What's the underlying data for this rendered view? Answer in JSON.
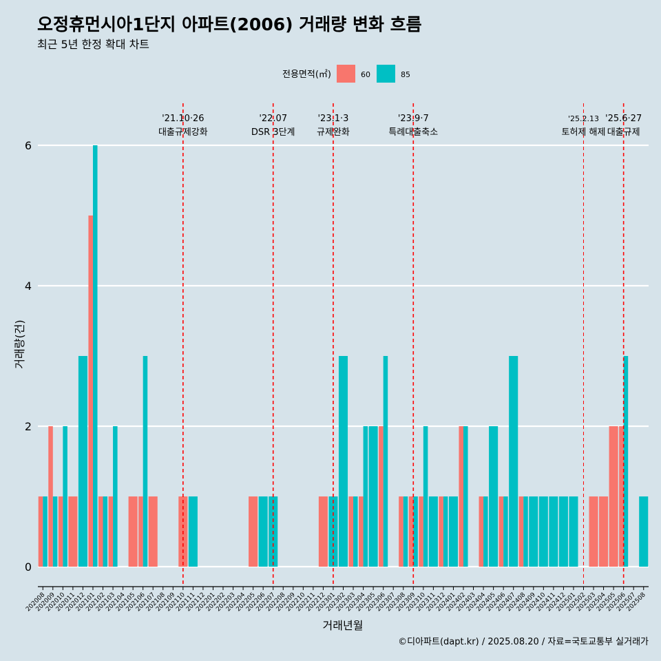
{
  "header": {
    "title": "오정휴먼시아1단지 아파트(2006) 거래량 변화 흐름",
    "subtitle": "최근 5년 한정 확대 차트"
  },
  "legend": {
    "title": "전용면적(㎡)",
    "items": [
      {
        "label": "60",
        "color": "#f8766d"
      },
      {
        "label": "85",
        "color": "#00bfc4"
      }
    ]
  },
  "caption": "©디아파트(dapt.kr) / 2025.08.20 / 자료=국토교통부 실거래가",
  "chart_data": {
    "type": "bar",
    "xlabel": "거래년월",
    "ylabel": "거래량(건)",
    "ylim": [
      -0.5,
      6.5
    ],
    "yticks": [
      0,
      2,
      4,
      6
    ],
    "grid": true,
    "legend_position": "top",
    "categories": [
      "202008",
      "202009",
      "202010",
      "202011",
      "202012",
      "202101",
      "202102",
      "202103",
      "202104",
      "202105",
      "202106",
      "202107",
      "202108",
      "202109",
      "202110",
      "202111",
      "202112",
      "202201",
      "202202",
      "202203",
      "202204",
      "202205",
      "202206",
      "202207",
      "202208",
      "202209",
      "202210",
      "202211",
      "202212",
      "202301",
      "202302",
      "202303",
      "202304",
      "202305",
      "202306",
      "202307",
      "202308",
      "202309",
      "202310",
      "202311",
      "202312",
      "202401",
      "202402",
      "202403",
      "202404",
      "202405",
      "202406",
      "202407",
      "202408",
      "202409",
      "202410",
      "202411",
      "202412",
      "202501",
      "202502",
      "202503",
      "202504",
      "202505",
      "202506",
      "202507",
      "202508"
    ],
    "series": [
      {
        "name": "60",
        "color": "#f8766d",
        "values": [
          1,
          2,
          1,
          1,
          0,
          5,
          1,
          1,
          0,
          1,
          1,
          1,
          0,
          0,
          1,
          0,
          0,
          0,
          0,
          0,
          0,
          1,
          0,
          0,
          0,
          0,
          0,
          0,
          1,
          0,
          0,
          1,
          1,
          0,
          2,
          0,
          1,
          1,
          1,
          0,
          1,
          0,
          2,
          0,
          1,
          0,
          1,
          0,
          1,
          0,
          0,
          0,
          0,
          0,
          0,
          1,
          1,
          2,
          2,
          0,
          0
        ]
      },
      {
        "name": "85",
        "color": "#00bfc4",
        "values": [
          1,
          1,
          2,
          0,
          3,
          6,
          1,
          2,
          0,
          0,
          3,
          0,
          0,
          0,
          0,
          1,
          0,
          0,
          0,
          0,
          0,
          0,
          1,
          1,
          0,
          0,
          0,
          0,
          0,
          1,
          3,
          1,
          2,
          2,
          3,
          0,
          1,
          1,
          2,
          1,
          1,
          1,
          2,
          0,
          1,
          2,
          1,
          3,
          1,
          1,
          1,
          1,
          1,
          1,
          0,
          0,
          0,
          0,
          3,
          0,
          1
        ]
      }
    ],
    "annotations": [
      {
        "category": "202110",
        "date": "'21.10·26",
        "label": "대출규제강화"
      },
      {
        "category": "202207",
        "date": "'22.07",
        "label": "DSR 3단계"
      },
      {
        "category": "202301",
        "date": "'23.1·3",
        "label": "규제완화"
      },
      {
        "category": "202309",
        "date": "'23.9·7",
        "label": "특례대출축소"
      },
      {
        "category": "202502",
        "date": "'25.2.13",
        "label": "토허제 해제"
      },
      {
        "category": "202506",
        "date": "'25.6·27",
        "label": "대출규제"
      }
    ]
  }
}
